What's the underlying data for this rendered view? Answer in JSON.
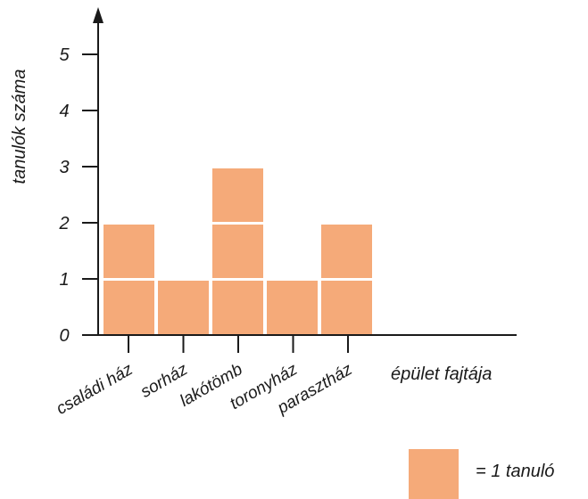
{
  "chart_data": {
    "type": "bar",
    "style": "stacked unit squares (pictogram)",
    "categories": [
      "családi ház",
      "sorház",
      "lakótömb",
      "toronyház",
      "parasztház"
    ],
    "values": [
      2,
      1,
      3,
      1,
      2
    ],
    "title": "",
    "xlabel": "épület fajtája",
    "ylabel": "tanulók száma",
    "ylim": [
      0,
      5
    ],
    "yticks": [
      0,
      1,
      2,
      3,
      4,
      5
    ],
    "ytick_labels": [
      "0",
      "1",
      "2",
      "3",
      "4",
      "5"
    ],
    "grid": false,
    "legend": {
      "text": "= 1 tanuló",
      "placement": "bottom-right"
    },
    "colors": {
      "unit": "#F5AA79",
      "axis": "#1a1a1a",
      "text": "#1a1a1a"
    }
  }
}
